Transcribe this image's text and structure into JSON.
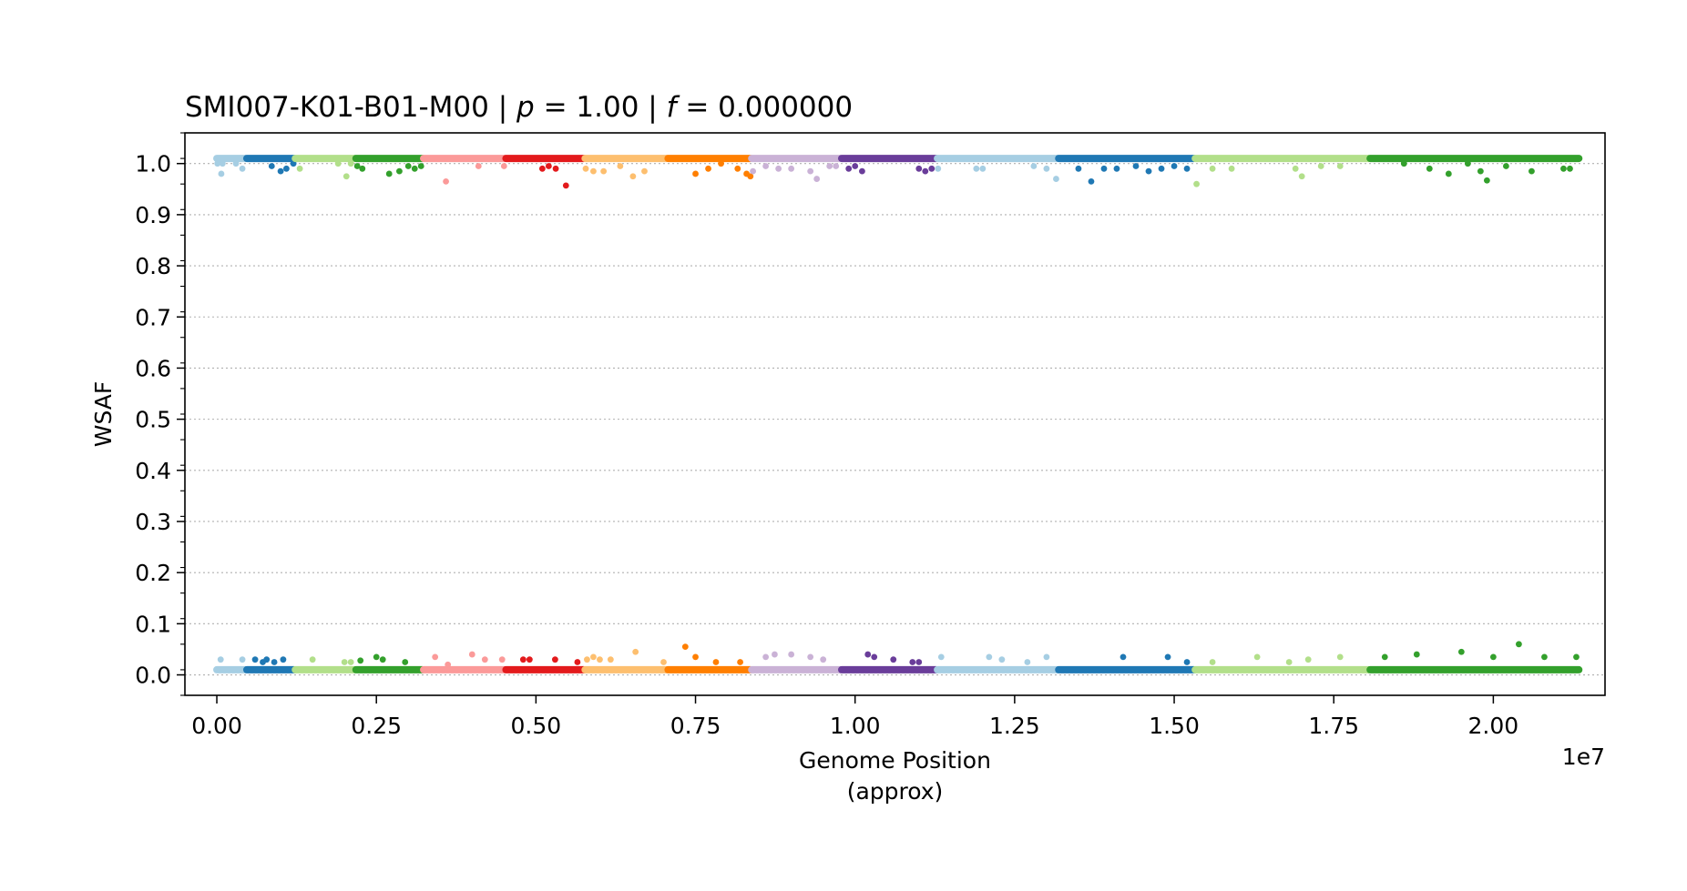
{
  "chart_data": {
    "type": "scatter",
    "title_parts": [
      {
        "text": "SMI007-K01-B01-M00 | ",
        "italic": false
      },
      {
        "text": "p",
        "italic": true
      },
      {
        "text": " = 1.00 | ",
        "italic": false
      },
      {
        "text": "f",
        "italic": true
      },
      {
        "text": " = 0.000000",
        "italic": false
      }
    ],
    "xlabel_lines": [
      "Genome Position",
      "(approx)"
    ],
    "x_offset_label": "1e7",
    "ylabel": "WSAF",
    "xlim": [
      -0.05,
      2.175
    ],
    "ylim": [
      -0.04,
      1.06
    ],
    "x_scale": 10000000,
    "xticks": [
      0.0,
      0.25,
      0.5,
      0.75,
      1.0,
      1.25,
      1.5,
      1.75,
      2.0
    ],
    "xtick_labels": [
      "0.00",
      "0.25",
      "0.50",
      "0.75",
      "1.00",
      "1.25",
      "1.50",
      "1.75",
      "2.00"
    ],
    "yticks": [
      0.0,
      0.1,
      0.2,
      0.3,
      0.4,
      0.5,
      0.6,
      0.7,
      0.8,
      0.9,
      1.0
    ],
    "ytick_labels": [
      "0.0",
      "0.1",
      "0.2",
      "0.3",
      "0.4",
      "0.5",
      "0.6",
      "0.7",
      "0.8",
      "0.9",
      "1.0"
    ],
    "y_minor_step": 0.05,
    "grid": "horizontal dotted",
    "segments": [
      {
        "x0": 0.0,
        "x1": 0.045,
        "color": "#a6cee3",
        "top": [
          [
            0.001,
            1.0
          ],
          [
            0.007,
            0.98
          ],
          [
            0.009,
            1.0
          ],
          [
            0.03,
            1.0
          ],
          [
            0.04,
            0.99
          ]
        ],
        "bottom": [
          [
            0.006,
            0.03
          ],
          [
            0.04,
            0.03
          ]
        ]
      },
      {
        "x0": 0.047,
        "x1": 0.121,
        "color": "#1f78b4",
        "top": [
          [
            0.086,
            0.995
          ],
          [
            0.1,
            0.985
          ],
          [
            0.109,
            0.99
          ],
          [
            0.12,
            1.0
          ]
        ],
        "bottom": [
          [
            0.06,
            0.03
          ],
          [
            0.072,
            0.025
          ],
          [
            0.078,
            0.03
          ],
          [
            0.09,
            0.025
          ],
          [
            0.104,
            0.03
          ]
        ]
      },
      {
        "x0": 0.123,
        "x1": 0.216,
        "color": "#b2df8a",
        "top": [
          [
            0.13,
            0.99
          ],
          [
            0.19,
            1.0
          ],
          [
            0.203,
            0.975
          ],
          [
            0.21,
            1.0
          ]
        ],
        "bottom": [
          [
            0.15,
            0.03
          ],
          [
            0.2,
            0.025
          ],
          [
            0.21,
            0.025
          ]
        ]
      },
      {
        "x0": 0.218,
        "x1": 0.322,
        "color": "#33a02c",
        "top": [
          [
            0.22,
            0.995
          ],
          [
            0.228,
            0.99
          ],
          [
            0.27,
            0.98
          ],
          [
            0.286,
            0.985
          ],
          [
            0.3,
            0.995
          ],
          [
            0.31,
            0.99
          ],
          [
            0.32,
            0.995
          ]
        ],
        "bottom": [
          [
            0.225,
            0.028
          ],
          [
            0.25,
            0.035
          ],
          [
            0.26,
            0.03
          ],
          [
            0.295,
            0.025
          ]
        ]
      },
      {
        "x0": 0.324,
        "x1": 0.451,
        "color": "#fb9a99",
        "top": [
          [
            0.359,
            0.965
          ],
          [
            0.41,
            0.995
          ],
          [
            0.45,
            0.995
          ]
        ],
        "bottom": [
          [
            0.342,
            0.035
          ],
          [
            0.362,
            0.02
          ],
          [
            0.4,
            0.04
          ],
          [
            0.42,
            0.03
          ],
          [
            0.447,
            0.03
          ]
        ]
      },
      {
        "x0": 0.453,
        "x1": 0.575,
        "color": "#e31a1c",
        "top": [
          [
            0.51,
            0.99
          ],
          [
            0.52,
            0.995
          ],
          [
            0.531,
            0.99
          ],
          [
            0.547,
            0.957
          ]
        ],
        "bottom": [
          [
            0.48,
            0.03
          ],
          [
            0.49,
            0.03
          ],
          [
            0.53,
            0.03
          ],
          [
            0.565,
            0.025
          ]
        ]
      },
      {
        "x0": 0.577,
        "x1": 0.705,
        "color": "#fdbf6f",
        "top": [
          [
            0.578,
            0.99
          ],
          [
            0.59,
            0.985
          ],
          [
            0.606,
            0.985
          ],
          [
            0.632,
            0.995
          ],
          [
            0.652,
            0.975
          ],
          [
            0.67,
            0.985
          ]
        ],
        "bottom": [
          [
            0.58,
            0.03
          ],
          [
            0.59,
            0.035
          ],
          [
            0.6,
            0.03
          ],
          [
            0.617,
            0.03
          ],
          [
            0.656,
            0.045
          ],
          [
            0.7,
            0.025
          ]
        ]
      },
      {
        "x0": 0.707,
        "x1": 0.836,
        "color": "#ff7f00",
        "top": [
          [
            0.75,
            0.98
          ],
          [
            0.77,
            0.99
          ],
          [
            0.79,
            1.0
          ],
          [
            0.816,
            0.99
          ],
          [
            0.83,
            0.98
          ],
          [
            0.836,
            0.975
          ]
        ],
        "bottom": [
          [
            0.734,
            0.055
          ],
          [
            0.75,
            0.035
          ],
          [
            0.782,
            0.025
          ],
          [
            0.82,
            0.025
          ]
        ]
      },
      {
        "x0": 0.838,
        "x1": 0.977,
        "color": "#cab2d6",
        "top": [
          [
            0.84,
            0.985
          ],
          [
            0.86,
            0.995
          ],
          [
            0.88,
            0.99
          ],
          [
            0.9,
            0.99
          ],
          [
            0.93,
            0.985
          ],
          [
            0.94,
            0.97
          ],
          [
            0.96,
            0.995
          ],
          [
            0.97,
            0.995
          ]
        ],
        "bottom": [
          [
            0.86,
            0.035
          ],
          [
            0.874,
            0.04
          ],
          [
            0.9,
            0.04
          ],
          [
            0.93,
            0.035
          ],
          [
            0.95,
            0.03
          ]
        ]
      },
      {
        "x0": 0.979,
        "x1": 1.127,
        "color": "#6a3d9a",
        "top": [
          [
            0.99,
            0.99
          ],
          [
            1.0,
            0.995
          ],
          [
            1.011,
            0.985
          ],
          [
            1.1,
            0.99
          ],
          [
            1.11,
            0.985
          ],
          [
            1.12,
            0.99
          ]
        ],
        "bottom": [
          [
            1.02,
            0.04
          ],
          [
            1.03,
            0.035
          ],
          [
            1.06,
            0.03
          ],
          [
            1.09,
            0.025
          ],
          [
            1.1,
            0.025
          ]
        ]
      },
      {
        "x0": 1.129,
        "x1": 1.317,
        "color": "#a6cee3",
        "top": [
          [
            1.13,
            0.99
          ],
          [
            1.19,
            0.99
          ],
          [
            1.2,
            0.99
          ],
          [
            1.28,
            0.995
          ],
          [
            1.3,
            0.99
          ],
          [
            1.315,
            0.97
          ]
        ],
        "bottom": [
          [
            1.135,
            0.035
          ],
          [
            1.21,
            0.035
          ],
          [
            1.23,
            0.03
          ],
          [
            1.27,
            0.025
          ],
          [
            1.3,
            0.035
          ]
        ]
      },
      {
        "x0": 1.319,
        "x1": 1.531,
        "color": "#1f78b4",
        "top": [
          [
            1.37,
            0.965
          ],
          [
            1.35,
            0.99
          ],
          [
            1.39,
            0.99
          ],
          [
            1.41,
            0.99
          ],
          [
            1.44,
            0.995
          ],
          [
            1.46,
            0.985
          ],
          [
            1.48,
            0.99
          ],
          [
            1.5,
            0.995
          ],
          [
            1.52,
            0.99
          ]
        ],
        "bottom": [
          [
            1.42,
            0.035
          ],
          [
            1.49,
            0.035
          ],
          [
            1.52,
            0.025
          ]
        ]
      },
      {
        "x0": 1.533,
        "x1": 1.805,
        "color": "#b2df8a",
        "top": [
          [
            1.535,
            0.96
          ],
          [
            1.56,
            0.99
          ],
          [
            1.59,
            0.99
          ],
          [
            1.69,
            0.99
          ],
          [
            1.7,
            0.975
          ],
          [
            1.73,
            0.995
          ],
          [
            1.76,
            0.995
          ]
        ],
        "bottom": [
          [
            1.56,
            0.025
          ],
          [
            1.63,
            0.035
          ],
          [
            1.68,
            0.025
          ],
          [
            1.71,
            0.03
          ],
          [
            1.76,
            0.035
          ]
        ]
      },
      {
        "x0": 1.807,
        "x1": 2.134,
        "color": "#33a02c",
        "top": [
          [
            1.86,
            1.0
          ],
          [
            1.9,
            0.99
          ],
          [
            1.93,
            0.98
          ],
          [
            1.96,
            1.0
          ],
          [
            1.98,
            0.985
          ],
          [
            1.99,
            0.967
          ],
          [
            2.02,
            0.995
          ],
          [
            2.06,
            0.985
          ],
          [
            2.11,
            0.99
          ],
          [
            2.12,
            0.99
          ]
        ],
        "bottom": [
          [
            1.83,
            0.035
          ],
          [
            1.88,
            0.04
          ],
          [
            1.95,
            0.045
          ],
          [
            2.0,
            0.035
          ],
          [
            2.04,
            0.06
          ],
          [
            2.08,
            0.035
          ],
          [
            2.13,
            0.035
          ]
        ]
      }
    ]
  }
}
